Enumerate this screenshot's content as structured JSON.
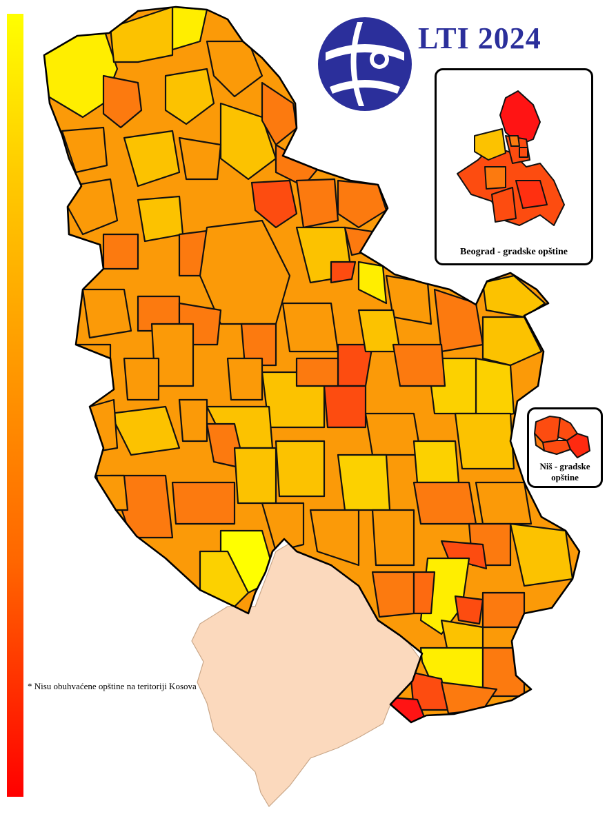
{
  "title": "LTI 2024",
  "inset_beograd": {
    "label": "Beograd - gradske opštine"
  },
  "inset_nis": {
    "label_line1": "Niš - gradske",
    "label_line2": "opštine"
  },
  "footnote": "* Nisu obuhvaćene opštine na teritoriji Kosova",
  "legend": {
    "gradient": [
      "#ffff00",
      "#ffcc00",
      "#ff9900",
      "#ff6600",
      "#ff0000"
    ]
  },
  "colors": {
    "yellow": "#ffff00",
    "light_orange": "#fcc200",
    "orange": "#fb9a08",
    "dark_orange": "#fc7a0f",
    "red_orange": "#fd4c10",
    "red": "#ff1414",
    "kosovo": "#fbd9bd",
    "logo_blue": "#2b2f9b"
  }
}
